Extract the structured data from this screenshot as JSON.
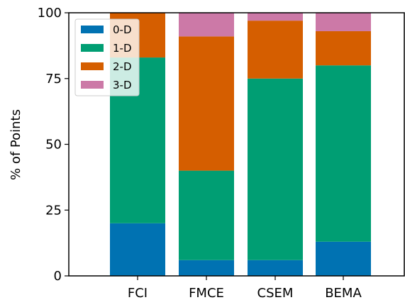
{
  "chart_data": {
    "type": "bar",
    "stacked": true,
    "categories": [
      "FCI",
      "FMCE",
      "CSEM",
      "BEMA"
    ],
    "series": [
      {
        "name": "0-D",
        "color": "#0072b2",
        "values": [
          20,
          6,
          6,
          13
        ]
      },
      {
        "name": "1-D",
        "color": "#009e73",
        "values": [
          63,
          34,
          69,
          67
        ]
      },
      {
        "name": "2-D",
        "color": "#d55e00",
        "values": [
          17,
          51,
          22,
          13
        ]
      },
      {
        "name": "3-D",
        "color": "#cc79a7",
        "values": [
          0,
          9,
          3,
          7
        ]
      }
    ],
    "title": "",
    "xlabel": "",
    "ylabel": "% of Points",
    "ylim": [
      0,
      100
    ],
    "yticks": [
      0,
      25,
      50,
      75,
      100
    ],
    "grid": false,
    "legend": {
      "position": "top-left"
    }
  }
}
